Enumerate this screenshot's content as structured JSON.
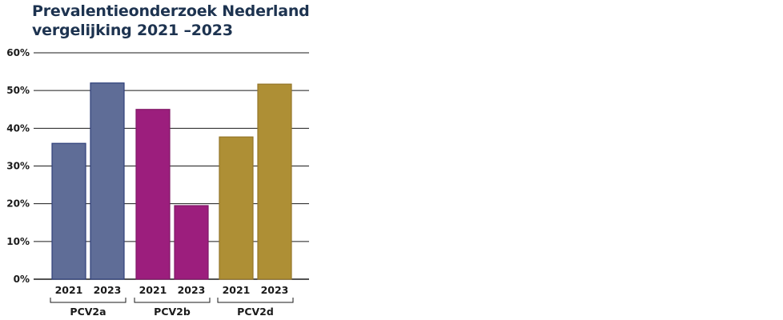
{
  "chart_data": {
    "type": "bar",
    "title_line1": "Prevalentieonderzoek Nederland",
    "title_line2": "vergelijking 2021 –2023",
    "ylim": [
      0,
      60
    ],
    "yticks": [
      0,
      10,
      20,
      30,
      40,
      50,
      60
    ],
    "ytick_labels": [
      "0%",
      "10%",
      "20%",
      "30%",
      "40%",
      "50%",
      "60%"
    ],
    "grid": true,
    "groups": [
      {
        "name": "PCV2a",
        "color": "#5f6d97",
        "border": "#2e3f7a",
        "bars": [
          {
            "label": "2021",
            "value": 36
          },
          {
            "label": "2023",
            "value": 52
          }
        ]
      },
      {
        "name": "PCV2b",
        "color": "#9c1e7d",
        "border": "#7f1766",
        "bars": [
          {
            "label": "2021",
            "value": 45
          },
          {
            "label": "2023",
            "value": 19.5
          }
        ]
      },
      {
        "name": "PCV2d",
        "color": "#ae8f35",
        "border": "#947629",
        "bars": [
          {
            "label": "2021",
            "value": 37.7
          },
          {
            "label": "2023",
            "value": 51.7
          }
        ]
      }
    ]
  }
}
